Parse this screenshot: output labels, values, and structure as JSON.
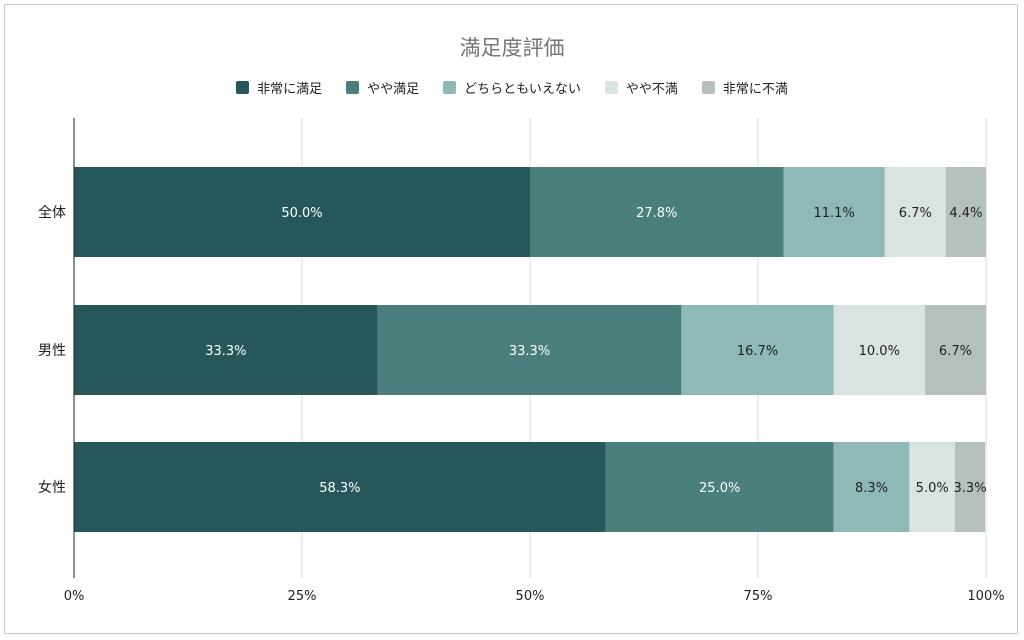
{
  "chart_data": {
    "type": "bar",
    "orientation": "horizontal",
    "stacked": true,
    "title": "満足度評価",
    "categories": [
      "全体",
      "男性",
      "女性"
    ],
    "series": [
      {
        "name": "非常に満足",
        "color": "#26575a",
        "label_color": "#ffffff",
        "values": [
          50.0,
          33.3,
          58.3
        ]
      },
      {
        "name": "やや満足",
        "color": "#4a7f7d",
        "label_color": "#ffffff",
        "values": [
          27.8,
          33.3,
          25.0
        ]
      },
      {
        "name": "どちらともいえない",
        "color": "#8fb9b8",
        "label_color": "#1f1f1f",
        "values": [
          11.1,
          16.7,
          8.3
        ]
      },
      {
        "name": "やや不満",
        "color": "#d9e3e2",
        "label_color": "#1f1f1f",
        "values": [
          6.7,
          10.0,
          5.0
        ]
      },
      {
        "name": "非常に不満",
        "color": "#b5bfbe",
        "label_color": "#1f1f1f",
        "values": [
          4.4,
          6.7,
          3.3
        ]
      }
    ],
    "data_labels": [
      [
        "50.0%",
        "27.8%",
        "11.1%",
        "6.7%",
        "4.4%"
      ],
      [
        "33.3%",
        "33.3%",
        "16.7%",
        "10.0%",
        "6.7%"
      ],
      [
        "58.3%",
        "25.0%",
        "8.3%",
        "5.0%",
        "3.3%"
      ]
    ],
    "x_ticks": [
      "0%",
      "25%",
      "50%",
      "75%",
      "100%"
    ],
    "x_tick_values": [
      0,
      25,
      50,
      75,
      100
    ],
    "xlim": [
      0,
      100
    ],
    "grid": true,
    "legend_position": "top-center"
  }
}
